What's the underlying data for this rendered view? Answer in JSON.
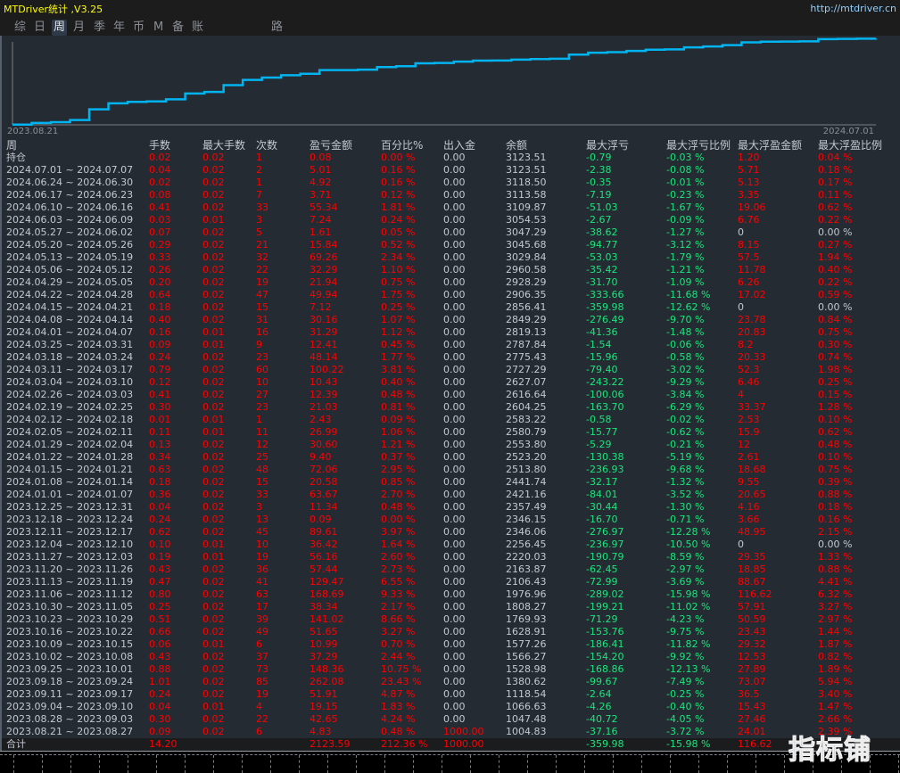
{
  "app": {
    "title": "MTDriver统计 ,V3.25",
    "site": "http://mtdriver.cn"
  },
  "tabs": [
    {
      "label": "综",
      "active": false
    },
    {
      "label": "日",
      "active": false
    },
    {
      "label": "周",
      "active": true
    },
    {
      "label": "月",
      "active": false
    },
    {
      "label": "季",
      "active": false
    },
    {
      "label": "年",
      "active": false
    },
    {
      "label": "币",
      "active": false
    },
    {
      "label": "M",
      "active": false
    },
    {
      "label": "备",
      "active": false
    },
    {
      "label": "账户",
      "active": false
    },
    {
      "label": "路径",
      "active": false
    }
  ],
  "chart": {
    "x_start": "2023.08.21",
    "x_end": "2024.07.01",
    "line_color": "#00b4f0",
    "series": "余额"
  },
  "colors": {
    "red": "#ff0000",
    "green": "#19e67a",
    "text": "#c3c8d2",
    "panel": "#252b33"
  },
  "columns": [
    "周",
    "手数",
    "最大手数",
    "次数",
    "盈亏金额",
    "百分比%",
    "出入金",
    "余额",
    "最大浮亏",
    "最大浮亏比例",
    "最大浮盈金额",
    "最大浮盈比例"
  ],
  "rows": [
    [
      "持仓",
      "0.02",
      "0.02",
      "1",
      "0.08",
      "0.00 %",
      "0.00",
      "3123.51",
      "-0.79",
      "-0.03 %",
      "1.20",
      "0.04 %"
    ],
    [
      "2024.07.01 ~ 2024.07.07",
      "0.04",
      "0.02",
      "2",
      "5.01",
      "0.16 %",
      "0.00",
      "3123.51",
      "-2.38",
      "-0.08 %",
      "5.71",
      "0.18 %"
    ],
    [
      "2024.06.24 ~ 2024.06.30",
      "0.02",
      "0.02",
      "1",
      "4.92",
      "0.16 %",
      "0.00",
      "3118.50",
      "-0.35",
      "-0.01 %",
      "5.13",
      "0.17 %"
    ],
    [
      "2024.06.17 ~ 2024.06.23",
      "0.08",
      "0.02",
      "7",
      "3.71",
      "0.12 %",
      "0.00",
      "3113.58",
      "-7.19",
      "-0.23 %",
      "3.35",
      "0.11 %"
    ],
    [
      "2024.06.10 ~ 2024.06.16",
      "0.41",
      "0.02",
      "33",
      "55.34",
      "1.81 %",
      "0.00",
      "3109.87",
      "-51.03",
      "-1.67 %",
      "19.06",
      "0.62 %"
    ],
    [
      "2024.06.03 ~ 2024.06.09",
      "0.03",
      "0.01",
      "3",
      "7.24",
      "0.24 %",
      "0.00",
      "3054.53",
      "-2.67",
      "-0.09 %",
      "6.76",
      "0.22 %"
    ],
    [
      "2024.05.27 ~ 2024.06.02",
      "0.07",
      "0.02",
      "5",
      "1.61",
      "0.05 %",
      "0.00",
      "3047.29",
      "-38.62",
      "-1.27 %",
      "0",
      "0.00 %"
    ],
    [
      "2024.05.20 ~ 2024.05.26",
      "0.29",
      "0.02",
      "21",
      "15.84",
      "0.52 %",
      "0.00",
      "3045.68",
      "-94.77",
      "-3.12 %",
      "8.15",
      "0.27 %"
    ],
    [
      "2024.05.13 ~ 2024.05.19",
      "0.33",
      "0.02",
      "32",
      "69.26",
      "2.34 %",
      "0.00",
      "3029.84",
      "-53.03",
      "-1.79 %",
      "57.5",
      "1.94 %"
    ],
    [
      "2024.05.06 ~ 2024.05.12",
      "0.26",
      "0.02",
      "22",
      "32.29",
      "1.10 %",
      "0.00",
      "2960.58",
      "-35.42",
      "-1.21 %",
      "11.78",
      "0.40 %"
    ],
    [
      "2024.04.29 ~ 2024.05.05",
      "0.20",
      "0.02",
      "19",
      "21.94",
      "0.75 %",
      "0.00",
      "2928.29",
      "-31.70",
      "-1.09 %",
      "6.26",
      "0.22 %"
    ],
    [
      "2024.04.22 ~ 2024.04.28",
      "0.64",
      "0.02",
      "47",
      "49.94",
      "1.75 %",
      "0.00",
      "2906.35",
      "-333.66",
      "-11.68 %",
      "17.02",
      "0.59 %"
    ],
    [
      "2024.04.15 ~ 2024.04.21",
      "0.18",
      "0.02",
      "15",
      "7.12",
      "0.25 %",
      "0.00",
      "2856.41",
      "-359.98",
      "-12.62 %",
      "0",
      "0.00 %"
    ],
    [
      "2024.04.08 ~ 2024.04.14",
      "0.40",
      "0.02",
      "31",
      "30.16",
      "1.07 %",
      "0.00",
      "2849.29",
      "-276.49",
      "-9.70 %",
      "23.78",
      "0.84 %"
    ],
    [
      "2024.04.01 ~ 2024.04.07",
      "0.16",
      "0.01",
      "16",
      "31.29",
      "1.12 %",
      "0.00",
      "2819.13",
      "-41.36",
      "-1.48 %",
      "20.83",
      "0.75 %"
    ],
    [
      "2024.03.25 ~ 2024.03.31",
      "0.09",
      "0.01",
      "9",
      "12.41",
      "0.45 %",
      "0.00",
      "2787.84",
      "-1.54",
      "-0.06 %",
      "8.2",
      "0.30 %"
    ],
    [
      "2024.03.18 ~ 2024.03.24",
      "0.24",
      "0.02",
      "23",
      "48.14",
      "1.77 %",
      "0.00",
      "2775.43",
      "-15.96",
      "-0.58 %",
      "20.33",
      "0.74 %"
    ],
    [
      "2024.03.11 ~ 2024.03.17",
      "0.79",
      "0.02",
      "60",
      "100.22",
      "3.81 %",
      "0.00",
      "2727.29",
      "-79.40",
      "-3.02 %",
      "52.3",
      "1.98 %"
    ],
    [
      "2024.03.04 ~ 2024.03.10",
      "0.12",
      "0.02",
      "10",
      "10.43",
      "0.40 %",
      "0.00",
      "2627.07",
      "-243.22",
      "-9.29 %",
      "6.46",
      "0.25 %"
    ],
    [
      "2024.02.26 ~ 2024.03.03",
      "0.41",
      "0.02",
      "27",
      "12.39",
      "0.48 %",
      "0.00",
      "2616.64",
      "-100.06",
      "-3.84 %",
      "4",
      "0.15 %"
    ],
    [
      "2024.02.19 ~ 2024.02.25",
      "0.30",
      "0.02",
      "23",
      "21.03",
      "0.81 %",
      "0.00",
      "2604.25",
      "-163.70",
      "-6.29 %",
      "33.37",
      "1.28 %"
    ],
    [
      "2024.02.12 ~ 2024.02.18",
      "0.01",
      "0.01",
      "1",
      "2.43",
      "0.09 %",
      "0.00",
      "2583.22",
      "-0.58",
      "-0.02 %",
      "2.53",
      "0.10 %"
    ],
    [
      "2024.02.05 ~ 2024.02.11",
      "0.11",
      "0.01",
      "11",
      "26.99",
      "1.06 %",
      "0.00",
      "2580.79",
      "-15.77",
      "-0.62 %",
      "15.9",
      "0.62 %"
    ],
    [
      "2024.01.29 ~ 2024.02.04",
      "0.13",
      "0.02",
      "12",
      "30.60",
      "1.21 %",
      "0.00",
      "2553.80",
      "-5.29",
      "-0.21 %",
      "12",
      "0.48 %"
    ],
    [
      "2024.01.22 ~ 2024.01.28",
      "0.34",
      "0.02",
      "25",
      "9.40",
      "0.37 %",
      "0.00",
      "2523.20",
      "-130.38",
      "-5.19 %",
      "2.61",
      "0.10 %"
    ],
    [
      "2024.01.15 ~ 2024.01.21",
      "0.63",
      "0.02",
      "48",
      "72.06",
      "2.95 %",
      "0.00",
      "2513.80",
      "-236.93",
      "-9.68 %",
      "18.68",
      "0.75 %"
    ],
    [
      "2024.01.08 ~ 2024.01.14",
      "0.18",
      "0.02",
      "15",
      "20.58",
      "0.85 %",
      "0.00",
      "2441.74",
      "-32.17",
      "-1.32 %",
      "9.55",
      "0.39 %"
    ],
    [
      "2024.01.01 ~ 2024.01.07",
      "0.36",
      "0.02",
      "33",
      "63.67",
      "2.70 %",
      "0.00",
      "2421.16",
      "-84.01",
      "-3.52 %",
      "20.65",
      "0.88 %"
    ],
    [
      "2023.12.25 ~ 2023.12.31",
      "0.04",
      "0.02",
      "3",
      "11.34",
      "0.48 %",
      "0.00",
      "2357.49",
      "-30.44",
      "-1.30 %",
      "4.16",
      "0.18 %"
    ],
    [
      "2023.12.18 ~ 2023.12.24",
      "0.24",
      "0.02",
      "13",
      "0.09",
      "0.00 %",
      "0.00",
      "2346.15",
      "-16.70",
      "-0.71 %",
      "3.66",
      "0.16 %"
    ],
    [
      "2023.12.11 ~ 2023.12.17",
      "0.62",
      "0.02",
      "45",
      "89.61",
      "3.97 %",
      "0.00",
      "2346.06",
      "-276.97",
      "-12.28 %",
      "48.95",
      "2.15 %"
    ],
    [
      "2023.12.04 ~ 2023.12.10",
      "0.10",
      "0.01",
      "10",
      "36.42",
      "1.64 %",
      "0.00",
      "2256.45",
      "-236.97",
      "-10.50 %",
      "0",
      "0.00 %"
    ],
    [
      "2023.11.27 ~ 2023.12.03",
      "0.19",
      "0.01",
      "19",
      "56.16",
      "2.60 %",
      "0.00",
      "2220.03",
      "-190.79",
      "-8.59 %",
      "29.35",
      "1.33 %"
    ],
    [
      "2023.11.20 ~ 2023.11.26",
      "0.43",
      "0.02",
      "36",
      "57.44",
      "2.73 %",
      "0.00",
      "2163.87",
      "-62.45",
      "-2.97 %",
      "18.85",
      "0.88 %"
    ],
    [
      "2023.11.13 ~ 2023.11.19",
      "0.47",
      "0.02",
      "41",
      "129.47",
      "6.55 %",
      "0.00",
      "2106.43",
      "-72.99",
      "-3.69 %",
      "88.67",
      "4.41 %"
    ],
    [
      "2023.11.06 ~ 2023.11.12",
      "0.80",
      "0.02",
      "63",
      "168.69",
      "9.33 %",
      "0.00",
      "1976.96",
      "-289.02",
      "-15.98 %",
      "116.62",
      "6.32 %"
    ],
    [
      "2023.10.30 ~ 2023.11.05",
      "0.25",
      "0.02",
      "17",
      "38.34",
      "2.17 %",
      "0.00",
      "1808.27",
      "-199.21",
      "-11.02 %",
      "57.91",
      "3.27 %"
    ],
    [
      "2023.10.23 ~ 2023.10.29",
      "0.51",
      "0.02",
      "39",
      "141.02",
      "8.66 %",
      "0.00",
      "1769.93",
      "-71.29",
      "-4.23 %",
      "50.59",
      "2.97 %"
    ],
    [
      "2023.10.16 ~ 2023.10.22",
      "0.66",
      "0.02",
      "49",
      "51.65",
      "3.27 %",
      "0.00",
      "1628.91",
      "-153.76",
      "-9.75 %",
      "23.43",
      "1.44 %"
    ],
    [
      "2023.10.09 ~ 2023.10.15",
      "0.06",
      "0.01",
      "6",
      "10.99",
      "0.70 %",
      "0.00",
      "1577.26",
      "-186.41",
      "-11.82 %",
      "29.32",
      "1.87 %"
    ],
    [
      "2023.10.02 ~ 2023.10.08",
      "0.43",
      "0.02",
      "37",
      "37.29",
      "2.44 %",
      "0.00",
      "1566.27",
      "-154.20",
      "-9.92 %",
      "12.53",
      "0.82 %"
    ],
    [
      "2023.09.25 ~ 2023.10.01",
      "0.88",
      "0.02",
      "73",
      "148.36",
      "10.75 %",
      "0.00",
      "1528.98",
      "-168.86",
      "-12.13 %",
      "27.89",
      "1.89 %"
    ],
    [
      "2023.09.18 ~ 2023.09.24",
      "1.01",
      "0.02",
      "85",
      "262.08",
      "23.43 %",
      "0.00",
      "1380.62",
      "-99.67",
      "-7.49 %",
      "73.07",
      "5.94 %"
    ],
    [
      "2023.09.11 ~ 2023.09.17",
      "0.24",
      "0.02",
      "19",
      "51.91",
      "4.87 %",
      "0.00",
      "1118.54",
      "-2.64",
      "-0.25 %",
      "36.5",
      "3.40 %"
    ],
    [
      "2023.09.04 ~ 2023.09.10",
      "0.04",
      "0.01",
      "4",
      "19.15",
      "1.83 %",
      "0.00",
      "1066.63",
      "-4.26",
      "-0.40 %",
      "15.43",
      "1.47 %"
    ],
    [
      "2023.08.28 ~ 2023.09.03",
      "0.30",
      "0.02",
      "22",
      "42.65",
      "4.24 %",
      "0.00",
      "1047.48",
      "-40.72",
      "-4.05 %",
      "27.46",
      "2.66 %"
    ],
    [
      "2023.08.21 ~ 2023.08.27",
      "0.09",
      "0.02",
      "6",
      "4.83",
      "0.48 %",
      "1000.00",
      "1004.83",
      "-37.16",
      "-3.72 %",
      "24.01",
      "2.39 %"
    ]
  ],
  "total": [
    "合计",
    "14.20",
    "",
    "",
    "2123.59",
    "212.36 %",
    "1000.00",
    "",
    "-359.98",
    "-15.98 %",
    "116.62",
    ""
  ],
  "watermark": "指标铺"
}
